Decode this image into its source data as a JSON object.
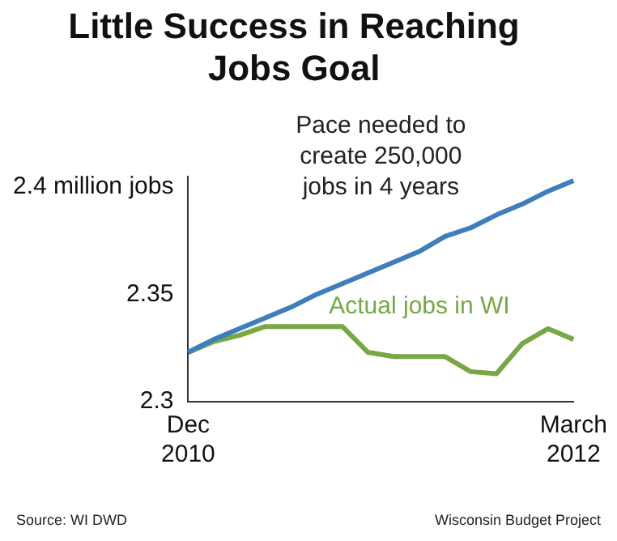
{
  "chart_data": {
    "type": "line",
    "title": "Little Success in Reaching Jobs Goal",
    "categories": [
      "Dec 2010",
      null,
      null,
      null,
      null,
      null,
      null,
      null,
      null,
      null,
      null,
      null,
      null,
      null,
      null,
      "March 2012"
    ],
    "series": [
      {
        "name": "Pace needed to create 250,000 jobs in 4 years",
        "color": "#3d7ebb",
        "values": [
          2.323,
          2.329,
          2.334,
          2.339,
          2.344,
          2.35,
          2.355,
          2.36,
          2.365,
          2.37,
          2.377,
          2.381,
          2.387,
          2.392,
          2.398,
          2.403
        ]
      },
      {
        "name": "Actual jobs in WI",
        "color": "#77a843",
        "values": [
          2.323,
          2.328,
          2.331,
          2.335,
          2.335,
          2.335,
          2.335,
          2.323,
          2.321,
          2.321,
          2.321,
          2.314,
          2.313,
          2.327,
          2.334,
          2.329
        ]
      }
    ],
    "ylim": [
      2.3,
      2.405
    ],
    "yticks": [
      2.3,
      2.35,
      {
        "value": 2.4,
        "label": "2.4 million jobs"
      }
    ],
    "grid": false,
    "legend": false,
    "marker": "none",
    "line_style": "solid",
    "annotations": [
      "Source: WI DWD",
      "Wisconsin Budget Project"
    ]
  }
}
